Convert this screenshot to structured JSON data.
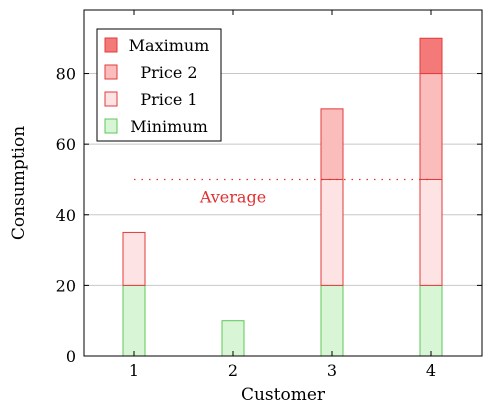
{
  "chart_data": {
    "type": "bar",
    "stacked": true,
    "categories": [
      "1",
      "2",
      "3",
      "4"
    ],
    "xlabel": "Customer",
    "ylabel": "Consumption",
    "ylim": [
      0,
      98
    ],
    "yticks": [
      0,
      20,
      40,
      60,
      80
    ],
    "grid": "horizontal",
    "legend_position": "top-left",
    "series": [
      {
        "name": "Minimum",
        "values": [
          20,
          10,
          20,
          20
        ],
        "fill": "#d8f5d5",
        "stroke": "#5cc85a"
      },
      {
        "name": "Price 1",
        "values": [
          15,
          0,
          30,
          30
        ],
        "fill": "#fde3e3",
        "stroke": "#e23b3b"
      },
      {
        "name": "Price 2",
        "values": [
          0,
          0,
          20,
          30
        ],
        "fill": "#fbbcbc",
        "stroke": "#e23b3b"
      },
      {
        "name": "Maximum",
        "values": [
          0,
          0,
          0,
          10
        ],
        "fill": "#f47a7a",
        "stroke": "#e23b3b"
      }
    ],
    "reference_line": {
      "label": "Average",
      "value": 50,
      "color": "#e03030"
    }
  }
}
